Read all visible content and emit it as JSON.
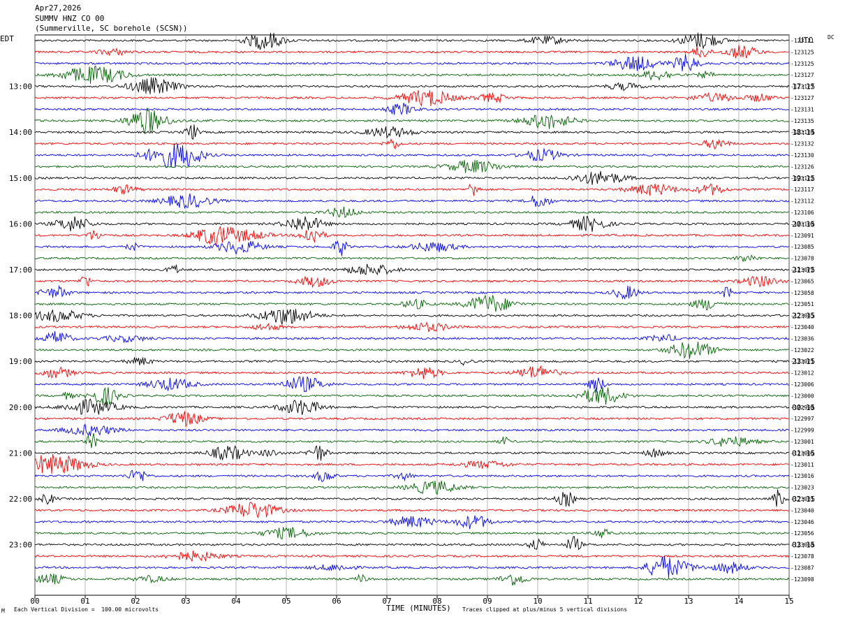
{
  "header": {
    "date": "Apr27,2026",
    "station": "SUMMV HNZ CO 00",
    "location": "(Summerville, SC borehole (SCSN))"
  },
  "left_zone": "EDT",
  "right_zone": "UTC",
  "right_zone_small": "DC",
  "chart_data": {
    "type": "line",
    "title": "",
    "xlabel": "TIME (MINUTES)",
    "x_ticks": [
      "00",
      "01",
      "02",
      "03",
      "04",
      "05",
      "06",
      "07",
      "08",
      "09",
      "10",
      "11",
      "12",
      "13",
      "14",
      "15"
    ],
    "xlim": [
      0,
      15
    ],
    "trace_colors": [
      "#000000",
      "#ff0000",
      "#0000ff",
      "#006400"
    ],
    "left_hour_labels": [
      "13:00",
      "14:00",
      "15:00",
      "16:00",
      "17:00",
      "18:00",
      "19:00",
      "20:00",
      "21:00",
      "22:00",
      "23:00"
    ],
    "right_hour_labels": [
      "17:15",
      "18:15",
      "19:15",
      "20:15",
      "21:15",
      "22:15",
      "23:15",
      "00:15",
      "01:15",
      "02:15",
      "03:15"
    ],
    "dc_offsets": [
      "-123121",
      "-123125",
      "-123125",
      "-123127",
      "-123127",
      "-123127",
      "-123131",
      "-123135",
      "-123134",
      "-123132",
      "-123130",
      "-123126",
      "-123122",
      "-123117",
      "-123112",
      "-123106",
      "-123100",
      "-123091",
      "-123085",
      "-123078",
      "-123072",
      "-123065",
      "-123058",
      "-123051",
      "-123045",
      "-123040",
      "-123036",
      "-123022",
      "-123021",
      "-123012",
      "-123006",
      "-123000",
      "-122998",
      "-122997",
      "-122999",
      "-123001",
      "-123006",
      "-123011",
      "-123016",
      "-123023",
      "-123031",
      "-123040",
      "-123046",
      "-123056",
      "-123068",
      "-123078",
      "-123087",
      "-123098"
    ]
  },
  "footer": {
    "scale_note": "Each Vertical Division =  100.00 microvolts",
    "clip_note": "Traces clipped at plus/minus 5 vertical divisions",
    "corner_mark": "M"
  }
}
